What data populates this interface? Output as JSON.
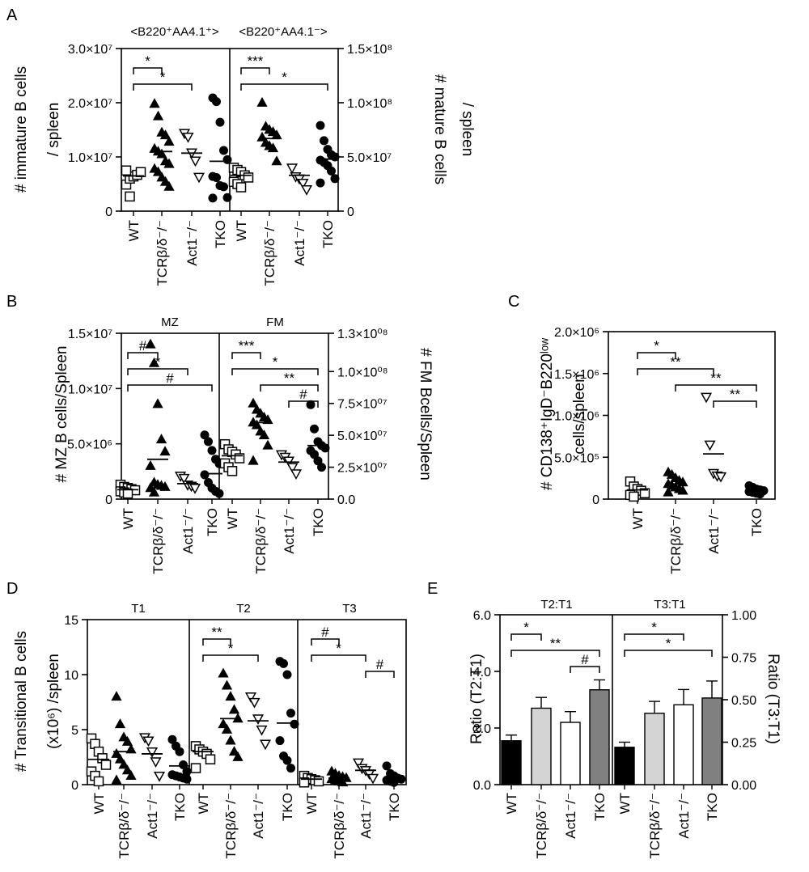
{
  "chart_data": [
    {
      "panel": "A",
      "type": "scatter",
      "letter": "A",
      "subplot_titles": [
        "<B220⁺AA4.1⁺>",
        "<B220⁺AA4.1⁻>"
      ],
      "ylabel_left": [
        "# immature B cells",
        "/ spleen"
      ],
      "ylabel_right": [
        "# mature B cells",
        "/ spleen"
      ],
      "y_left": {
        "min": 0,
        "max": 30000000,
        "ticks": [
          0,
          10000000,
          20000000,
          30000000
        ],
        "tick_labels": [
          "0",
          "1.0×10⁷",
          "2.0×10⁷",
          "3.0×10⁷"
        ]
      },
      "y_right": {
        "min": 0,
        "max": 150000000,
        "ticks": [
          0,
          50000000,
          100000000,
          150000000
        ],
        "tick_labels": [
          "0",
          "5.0×10⁷",
          "1.0×10⁸",
          "1.5×10⁸"
        ]
      },
      "groups": [
        "WT",
        "TCRβ/δ⁻/⁻",
        "Act1⁻/⁻",
        "TKO"
      ],
      "markers": [
        "open-square",
        "filled-triangle",
        "open-inverted-triangle",
        "filled-circle"
      ],
      "subplots": [
        {
          "axis": "left",
          "series": [
            {
              "group": "WT",
              "values": [
                4900000,
                6000000,
                6400000,
                6700000,
                7200000,
                7500000,
                2700000
              ],
              "mean": 6500000
            },
            {
              "group": "TCRβ/δ⁻/⁻",
              "values": [
                19800000,
                17500000,
                14500000,
                14000000,
                12800000,
                11500000,
                11000000,
                10500000,
                9200000,
                8700000,
                7800000,
                7200000,
                6200000,
                5400000,
                4500000
              ],
              "mean": 11000000
            },
            {
              "group": "Act1⁻/⁻",
              "values": [
                14400000,
                13700000,
                10800000,
                9300000,
                6300000
              ],
              "mean": 10700000
            },
            {
              "group": "TKO",
              "values": [
                20900000,
                20200000,
                16400000,
                11200000,
                9500000,
                6400000,
                6200000,
                4700000,
                4500000,
                2500000,
                2400000
              ],
              "mean": 9200000
            }
          ],
          "significance": [
            {
              "from": 0,
              "to": 1,
              "label": "*"
            },
            {
              "from": 0,
              "to": 2,
              "label": "*"
            }
          ]
        },
        {
          "axis": "right",
          "series": [
            {
              "group": "WT",
              "values": [
                40000000,
                38000000,
                36000000,
                33000000,
                31000000,
                27000000,
                25000000,
                22000000
              ],
              "mean": 33000000
            },
            {
              "group": "TCRβ/δ⁻/⁻",
              "values": [
                100000000,
                78000000,
                75000000,
                73000000,
                70000000,
                68000000,
                63000000,
                60000000,
                58000000,
                46000000
              ],
              "mean": 67000000
            },
            {
              "group": "Act1⁻/⁻",
              "values": [
                40000000,
                32000000,
                30000000,
                26000000,
                20000000
              ],
              "mean": 33000000
            },
            {
              "group": "TKO",
              "values": [
                79000000,
                65000000,
                57000000,
                52000000,
                50000000,
                47000000,
                45000000,
                42000000,
                37000000,
                30000000,
                26000000
              ],
              "mean": 48000000
            }
          ],
          "significance": [
            {
              "from": 0,
              "to": 1,
              "label": "***"
            },
            {
              "from": 0,
              "to": 3,
              "label": "*"
            }
          ]
        }
      ]
    },
    {
      "panel": "B",
      "type": "scatter",
      "letter": "B",
      "subplot_titles": [
        "MZ",
        "FM"
      ],
      "ylabel_left": [
        "# MZ B cells/Spleen"
      ],
      "ylabel_right": [
        "# FM Bcells/Spleen"
      ],
      "y_left": {
        "min": 0,
        "max": 15000000,
        "ticks": [
          0,
          5000000,
          10000000,
          15000000
        ],
        "tick_labels": [
          "0",
          "5.0×10⁶",
          "1.0×10⁷",
          "1.5×10⁷"
        ]
      },
      "y_right": {
        "min": 0,
        "max": 130000000,
        "ticks": [
          0,
          25000000,
          50000000,
          75000000,
          100000000,
          130000000
        ],
        "tick_labels": [
          "0.0",
          "2.5×10⁰⁷",
          "5.0×10⁰⁷",
          "7.5×10⁰⁷",
          "1.0×10⁰⁸",
          "1.3×10⁰⁸"
        ]
      },
      "groups": [
        "WT",
        "TCRβ/δ⁻/⁻",
        "Act1⁻/⁻",
        "TKO"
      ],
      "markers": [
        "open-square",
        "filled-triangle",
        "open-inverted-triangle",
        "filled-circle"
      ],
      "subplots": [
        {
          "axis": "left",
          "series": [
            {
              "group": "WT",
              "values": [
                1300000,
                1100000,
                1000000,
                900000,
                800000,
                700000,
                600000,
                500000
              ],
              "mean": 850000
            },
            {
              "group": "TCRβ/δ⁻/⁻",
              "values": [
                14000000,
                12300000,
                8600000,
                5400000,
                4300000,
                3000000,
                1500000,
                1300000,
                1200000,
                1100000,
                1000000,
                600000
              ],
              "mean": 3600000
            },
            {
              "group": "Act1⁻/⁻",
              "values": [
                2100000,
                1900000,
                1300000,
                1200000,
                1000000
              ],
              "mean": 1400000
            },
            {
              "group": "TKO",
              "values": [
                5800000,
                5200000,
                4400000,
                3600000,
                3200000,
                2200000,
                1500000,
                1000000,
                700000,
                500000
              ],
              "mean": 2300000
            }
          ],
          "significance": [
            {
              "from": 0,
              "to": 1,
              "label": "#"
            },
            {
              "from": 0,
              "to": 2,
              "label": "*"
            },
            {
              "from": 0,
              "to": 3,
              "label": "#"
            }
          ]
        },
        {
          "axis": "right",
          "series": [
            {
              "group": "WT",
              "values": [
                43000000,
                39000000,
                37000000,
                35000000,
                32000000,
                28000000,
                25000000,
                22000000
              ],
              "mean": 34000000
            },
            {
              "group": "TCRβ/δ⁻/⁻",
              "values": [
                75000000,
                70000000,
                67000000,
                64000000,
                62000000,
                60000000,
                58000000,
                53000000,
                50000000,
                42000000,
                30000000
              ],
              "mean": 60000000
            },
            {
              "group": "Act1⁻/⁻",
              "values": [
                35000000,
                33000000,
                30000000,
                25000000,
                20000000
              ],
              "mean": 29000000
            },
            {
              "group": "TKO",
              "values": [
                74000000,
                55000000,
                45000000,
                42000000,
                40000000,
                38000000,
                35000000,
                30000000,
                25000000
              ],
              "mean": 42000000
            }
          ],
          "significance": [
            {
              "from": 0,
              "to": 1,
              "label": "***"
            },
            {
              "from": 0,
              "to": 3,
              "label": "*"
            },
            {
              "from": 1,
              "to": 3,
              "label": "**"
            },
            {
              "from": 2,
              "to": 3,
              "label": "#"
            }
          ]
        }
      ]
    },
    {
      "panel": "C",
      "type": "scatter",
      "letter": "C",
      "ylabel_left": [
        "# CD138⁺IgD⁻B220ˡᵒʷ",
        "cells/spleen"
      ],
      "y_left": {
        "min": 0,
        "max": 2000000,
        "ticks": [
          0,
          500000,
          1000000,
          1500000,
          2000000
        ],
        "tick_labels": [
          "0",
          "5.0×10⁵",
          "1.0×10⁶",
          "1.5×10⁶",
          "2.0×10⁶"
        ]
      },
      "groups": [
        "WT",
        "TCRβ/δ⁻/⁻",
        "Act1⁻/⁻",
        "TKO"
      ],
      "markers": [
        "open-square",
        "filled-triangle",
        "open-inverted-triangle",
        "filled-circle"
      ],
      "series": [
        {
          "group": "WT",
          "values": [
            210000,
            150000,
            120000,
            100000,
            70000,
            50000,
            30000
          ],
          "mean": 110000
        },
        {
          "group": "TCRβ/δ⁻/⁻",
          "values": [
            320000,
            290000,
            250000,
            220000,
            200000,
            180000,
            160000,
            140000,
            120000,
            100000,
            80000
          ],
          "mean": 180000
        },
        {
          "group": "Act1⁻/⁻",
          "values": [
            1220000,
            650000,
            310000,
            280000,
            270000
          ],
          "mean": 540000
        },
        {
          "group": "TKO",
          "values": [
            160000,
            140000,
            120000,
            110000,
            100000,
            90000,
            80000,
            70000,
            60000
          ],
          "mean": 100000
        }
      ],
      "significance": [
        {
          "from": 0,
          "to": 1,
          "label": "*"
        },
        {
          "from": 0,
          "to": 2,
          "label": "**"
        },
        {
          "from": 1,
          "to": 3,
          "label": "**"
        },
        {
          "from": 2,
          "to": 3,
          "label": "**"
        }
      ]
    },
    {
      "panel": "D",
      "type": "scatter",
      "letter": "D",
      "subplot_titles": [
        "T1",
        "T2",
        "T3"
      ],
      "ylabel_left": [
        "# Transitional B cells",
        "(x10⁶) /spleen"
      ],
      "y_left": {
        "min": 0,
        "max": 15,
        "ticks": [
          0,
          5,
          10,
          15
        ],
        "tick_labels": [
          "0",
          "5",
          "10",
          "15"
        ]
      },
      "groups": [
        "WT",
        "TCRβ/δ⁻/⁻",
        "Act1⁻/⁻",
        "TKO"
      ],
      "markers": [
        "open-square",
        "filled-triangle",
        "open-inverted-triangle",
        "filled-circle"
      ],
      "subplots": [
        {
          "series": [
            {
              "group": "WT",
              "values": [
                4.2,
                3.7,
                3.0,
                2.4,
                1.8,
                1.2,
                0.8,
                0.3
              ],
              "mean": 2.3
            },
            {
              "group": "TCRβ/δ⁻/⁻",
              "values": [
                8.0,
                5.5,
                4.3,
                3.9,
                3.2,
                2.8,
                2.3,
                1.8,
                1.3,
                0.8,
                0.4
              ],
              "mean": 3.0
            },
            {
              "group": "Act1⁻/⁻",
              "values": [
                4.3,
                4.0,
                3.0,
                2.1,
                0.8
              ],
              "mean": 2.8
            },
            {
              "group": "TKO",
              "values": [
                4.1,
                3.5,
                3.0,
                1.8,
                1.2,
                0.9,
                0.8,
                0.7,
                0.6,
                0.5
              ],
              "mean": 1.7
            }
          ],
          "significance": []
        },
        {
          "series": [
            {
              "group": "WT",
              "values": [
                3.5,
                3.2,
                3.0,
                2.8,
                2.3,
                1.5
              ],
              "mean": 3.0
            },
            {
              "group": "TCRβ/δ⁻/⁻",
              "values": [
                10.1,
                9.0,
                8.0,
                6.8,
                6.0,
                5.5,
                5.0,
                4.0,
                3.0,
                2.5
              ],
              "mean": 6.0
            },
            {
              "group": "Act1⁻/⁻",
              "values": [
                8.0,
                7.5,
                6.0,
                5.0,
                3.7
              ],
              "mean": 5.8
            },
            {
              "group": "TKO",
              "values": [
                11.2,
                11.0,
                10.0,
                6.5,
                5.5,
                4.0,
                2.6,
                2.2,
                1.5
              ],
              "mean": 5.6
            }
          ],
          "significance": [
            {
              "from": 0,
              "to": 1,
              "label": "**"
            },
            {
              "from": 0,
              "to": 2,
              "label": "*"
            }
          ]
        },
        {
          "series": [
            {
              "group": "WT",
              "values": [
                0.8,
                0.6,
                0.5,
                0.4,
                0.3,
                0.2
              ],
              "mean": 0.5
            },
            {
              "group": "TCRβ/δ⁻/⁻",
              "values": [
                1.2,
                1.0,
                0.8,
                0.7,
                0.6,
                0.5,
                0.4,
                0.3,
                0.2
              ],
              "mean": 0.6
            },
            {
              "group": "Act1⁻/⁻",
              "values": [
                2.0,
                1.5,
                1.3,
                1.0,
                0.6
              ],
              "mean": 1.3
            },
            {
              "group": "TKO",
              "values": [
                1.7,
                1.0,
                0.8,
                0.6,
                0.5,
                0.4,
                0.3,
                0.2
              ],
              "mean": 0.6
            }
          ],
          "significance": [
            {
              "from": 0,
              "to": 1,
              "label": "#"
            },
            {
              "from": 0,
              "to": 2,
              "label": "*"
            },
            {
              "from": 2,
              "to": 3,
              "label": "#"
            }
          ]
        }
      ]
    },
    {
      "panel": "E",
      "type": "bar",
      "letter": "E",
      "subplot_titles": [
        "T2:T1",
        "T3:T1"
      ],
      "ylabel_left": [
        "Ratio (T2:T1)"
      ],
      "ylabel_right": [
        "Ratio (T3:T1)"
      ],
      "y_left": {
        "min": 0,
        "max": 6,
        "ticks": [
          0,
          2,
          4,
          6
        ],
        "tick_labels": [
          "0.0",
          "2.0",
          "4.0",
          "6.0"
        ]
      },
      "y_right": {
        "min": 0,
        "max": 1,
        "ticks": [
          0,
          0.25,
          0.5,
          0.75,
          1.0
        ],
        "tick_labels": [
          "0.00",
          "0.25",
          "0.50",
          "0.75",
          "1.00"
        ]
      },
      "groups": [
        "WT",
        "TCRβ/δ⁻/⁻",
        "Act1⁻/⁻",
        "TKO"
      ],
      "bar_colors": [
        "#000000",
        "#d4d4d4",
        "#ffffff",
        "#808080"
      ],
      "subplots": [
        {
          "axis": "left",
          "values": [
            1.55,
            2.7,
            2.2,
            3.35
          ],
          "errors": [
            0.2,
            0.38,
            0.38,
            0.35
          ],
          "significance": [
            {
              "from": 0,
              "to": 1,
              "label": "*"
            },
            {
              "from": 0,
              "to": 3,
              "label": "**"
            },
            {
              "from": 2,
              "to": 3,
              "label": "#"
            }
          ]
        },
        {
          "axis": "right",
          "values": [
            0.22,
            0.42,
            0.47,
            0.51
          ],
          "errors": [
            0.03,
            0.07,
            0.09,
            0.1
          ],
          "significance": [
            {
              "from": 0,
              "to": 2,
              "label": "*"
            },
            {
              "from": 0,
              "to": 3,
              "label": "*"
            }
          ]
        }
      ]
    }
  ]
}
